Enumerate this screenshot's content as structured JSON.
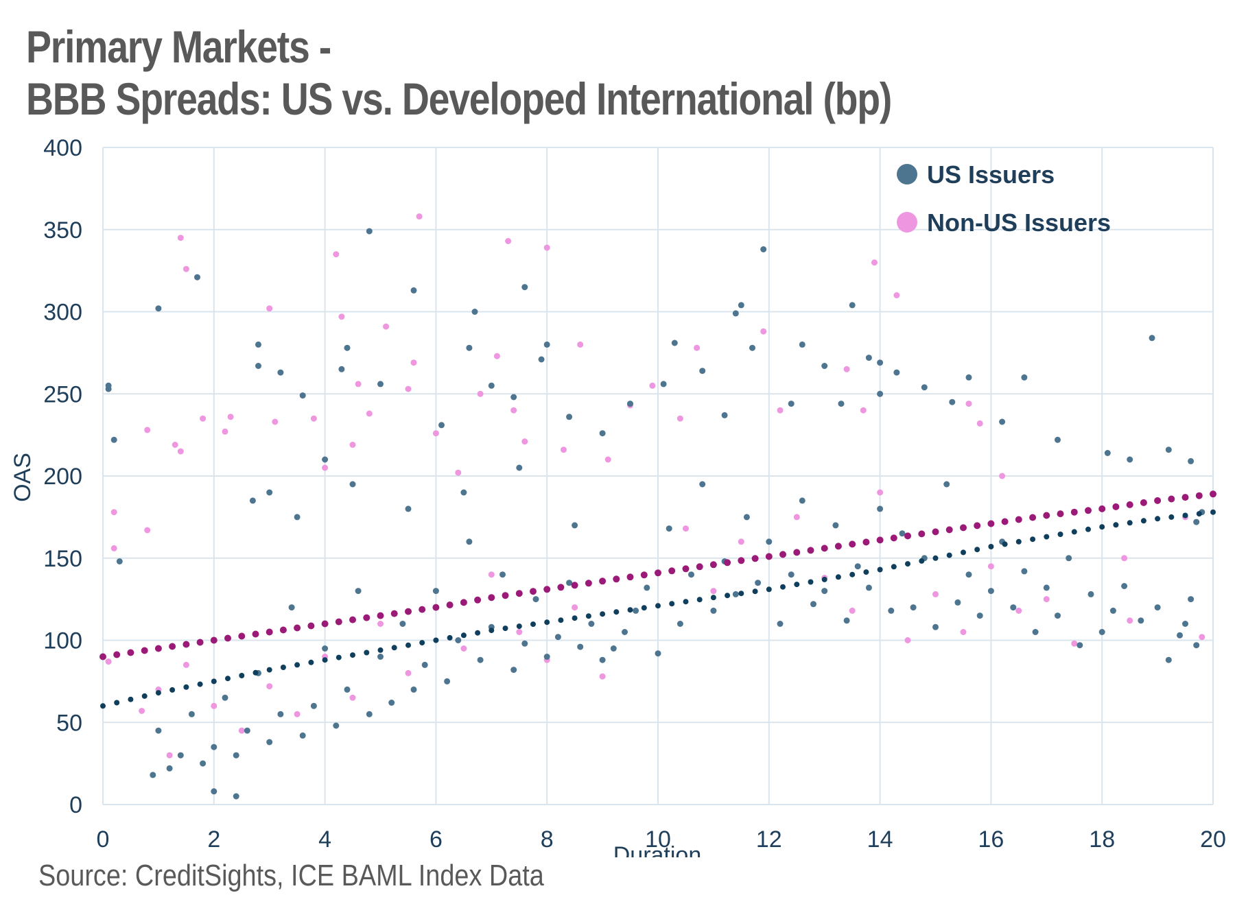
{
  "header": {
    "title_line1": "Primary Markets -",
    "title_line2": "BBB Spreads: US vs. Developed International (bp)"
  },
  "source": "Source: CreditSights, ICE BAML Index Data",
  "colors": {
    "us": "#4E7590",
    "non_us": "#EE97E0",
    "us_trend": "#0F3F5C",
    "non_us_trend": "#9B1A78",
    "grid": "#DAE4EC",
    "axis_text": "#1F3E5A"
  },
  "chart_data": {
    "type": "scatter",
    "title": "BBB Spreads: US vs. Developed International (bp)",
    "xlabel": "Duration",
    "ylabel": "OAS",
    "xlim": [
      0,
      20
    ],
    "ylim": [
      0,
      400
    ],
    "x_ticks": [
      "0",
      "2",
      "4",
      "6",
      "8",
      "10",
      "12",
      "14",
      "16",
      "18",
      "20"
    ],
    "y_ticks": [
      "0",
      "50",
      "100",
      "150",
      "200",
      "250",
      "300",
      "350",
      "400"
    ],
    "grid": true,
    "legend_position": "top-right",
    "series": [
      {
        "name": "US Issuers",
        "points": [
          [
            0.1,
            253
          ],
          [
            0.1,
            255
          ],
          [
            0.2,
            222
          ],
          [
            0.3,
            148
          ],
          [
            1.0,
            302
          ],
          [
            1.7,
            321
          ],
          [
            2.8,
            280
          ],
          [
            2.8,
            267
          ],
          [
            3.2,
            263
          ],
          [
            3.6,
            249
          ],
          [
            4.3,
            265
          ],
          [
            4.4,
            278
          ],
          [
            4.8,
            349
          ],
          [
            5.0,
            256
          ],
          [
            5.6,
            313
          ],
          [
            6.1,
            231
          ],
          [
            6.7,
            300
          ],
          [
            6.6,
            278
          ],
          [
            7.0,
            255
          ],
          [
            7.4,
            248
          ],
          [
            7.6,
            315
          ],
          [
            8.0,
            280
          ],
          [
            7.9,
            271
          ],
          [
            8.4,
            236
          ],
          [
            9.0,
            226
          ],
          [
            9.5,
            244
          ],
          [
            10.1,
            256
          ],
          [
            10.3,
            281
          ],
          [
            10.8,
            264
          ],
          [
            11.2,
            237
          ],
          [
            11.4,
            299
          ],
          [
            11.5,
            304
          ],
          [
            11.7,
            278
          ],
          [
            11.9,
            338
          ],
          [
            12.4,
            244
          ],
          [
            12.6,
            280
          ],
          [
            13.0,
            267
          ],
          [
            13.3,
            244
          ],
          [
            13.5,
            304
          ],
          [
            13.8,
            272
          ],
          [
            14.0,
            250
          ],
          [
            14.0,
            269
          ],
          [
            14.3,
            263
          ],
          [
            14.8,
            254
          ],
          [
            15.3,
            245
          ],
          [
            15.6,
            260
          ],
          [
            16.2,
            233
          ],
          [
            16.6,
            260
          ],
          [
            17.2,
            222
          ],
          [
            18.1,
            214
          ],
          [
            18.5,
            210
          ],
          [
            18.9,
            284
          ],
          [
            19.2,
            216
          ],
          [
            19.6,
            209
          ],
          [
            19.8,
            178
          ],
          [
            19.7,
            172
          ],
          [
            19.6,
            125
          ],
          [
            19.5,
            110
          ],
          [
            19.4,
            103
          ],
          [
            19.7,
            97
          ],
          [
            19.2,
            88
          ],
          [
            19.0,
            120
          ],
          [
            18.7,
            112
          ],
          [
            18.4,
            133
          ],
          [
            18.2,
            118
          ],
          [
            18.0,
            105
          ],
          [
            17.8,
            128
          ],
          [
            17.6,
            97
          ],
          [
            17.4,
            150
          ],
          [
            17.2,
            115
          ],
          [
            17.0,
            132
          ],
          [
            16.8,
            105
          ],
          [
            16.6,
            142
          ],
          [
            16.4,
            120
          ],
          [
            16.2,
            160
          ],
          [
            16.0,
            130
          ],
          [
            15.8,
            115
          ],
          [
            15.6,
            140
          ],
          [
            15.4,
            123
          ],
          [
            15.2,
            195
          ],
          [
            15.0,
            108
          ],
          [
            14.8,
            150
          ],
          [
            14.6,
            120
          ],
          [
            14.4,
            165
          ],
          [
            14.2,
            118
          ],
          [
            14.0,
            180
          ],
          [
            13.8,
            132
          ],
          [
            13.6,
            145
          ],
          [
            13.4,
            112
          ],
          [
            13.2,
            170
          ],
          [
            13.0,
            130
          ],
          [
            12.8,
            122
          ],
          [
            12.6,
            185
          ],
          [
            12.4,
            140
          ],
          [
            12.2,
            110
          ],
          [
            12.0,
            160
          ],
          [
            11.8,
            135
          ],
          [
            11.6,
            175
          ],
          [
            11.4,
            128
          ],
          [
            11.2,
            148
          ],
          [
            11.0,
            118
          ],
          [
            10.8,
            195
          ],
          [
            10.6,
            140
          ],
          [
            10.4,
            110
          ],
          [
            10.2,
            168
          ],
          [
            10.0,
            92
          ],
          [
            9.8,
            132
          ],
          [
            9.6,
            118
          ],
          [
            9.4,
            105
          ],
          [
            9.2,
            95
          ],
          [
            9.0,
            88
          ],
          [
            8.8,
            110
          ],
          [
            8.6,
            96
          ],
          [
            8.4,
            135
          ],
          [
            8.2,
            102
          ],
          [
            8.0,
            90
          ],
          [
            7.8,
            125
          ],
          [
            7.6,
            98
          ],
          [
            7.4,
            82
          ],
          [
            7.2,
            140
          ],
          [
            7.0,
            108
          ],
          [
            6.8,
            88
          ],
          [
            6.6,
            160
          ],
          [
            6.4,
            100
          ],
          [
            6.2,
            75
          ],
          [
            6.0,
            130
          ],
          [
            5.8,
            85
          ],
          [
            5.6,
            70
          ],
          [
            5.4,
            110
          ],
          [
            5.2,
            62
          ],
          [
            5.0,
            90
          ],
          [
            4.8,
            55
          ],
          [
            4.6,
            130
          ],
          [
            4.4,
            70
          ],
          [
            4.2,
            48
          ],
          [
            4.0,
            95
          ],
          [
            3.8,
            60
          ],
          [
            3.6,
            42
          ],
          [
            3.4,
            120
          ],
          [
            3.2,
            55
          ],
          [
            3.0,
            38
          ],
          [
            2.8,
            80
          ],
          [
            2.6,
            45
          ],
          [
            2.4,
            30
          ],
          [
            2.2,
            65
          ],
          [
            2.0,
            35
          ],
          [
            1.8,
            25
          ],
          [
            1.6,
            55
          ],
          [
            1.4,
            30
          ],
          [
            1.2,
            22
          ],
          [
            1.0,
            45
          ],
          [
            0.9,
            18
          ],
          [
            2.0,
            8
          ],
          [
            2.4,
            5
          ],
          [
            2.7,
            185
          ],
          [
            3.0,
            190
          ],
          [
            3.5,
            175
          ],
          [
            4.0,
            210
          ],
          [
            4.5,
            195
          ],
          [
            5.5,
            180
          ],
          [
            6.5,
            190
          ],
          [
            7.5,
            205
          ],
          [
            8.5,
            170
          ]
        ]
      },
      {
        "name": "Non-US Issuers",
        "points": [
          [
            0.2,
            178
          ],
          [
            0.2,
            156
          ],
          [
            0.8,
            228
          ],
          [
            0.8,
            167
          ],
          [
            1.3,
            219
          ],
          [
            1.4,
            215
          ],
          [
            1.4,
            345
          ],
          [
            1.5,
            326
          ],
          [
            1.8,
            235
          ],
          [
            2.2,
            227
          ],
          [
            2.3,
            236
          ],
          [
            3.0,
            302
          ],
          [
            3.1,
            233
          ],
          [
            3.8,
            235
          ],
          [
            4.0,
            205
          ],
          [
            4.2,
            335
          ],
          [
            4.3,
            297
          ],
          [
            4.5,
            219
          ],
          [
            4.6,
            256
          ],
          [
            4.8,
            238
          ],
          [
            5.1,
            291
          ],
          [
            5.5,
            253
          ],
          [
            5.6,
            269
          ],
          [
            5.7,
            358
          ],
          [
            6.0,
            226
          ],
          [
            6.4,
            202
          ],
          [
            6.8,
            250
          ],
          [
            7.1,
            273
          ],
          [
            7.3,
            343
          ],
          [
            7.4,
            240
          ],
          [
            7.6,
            221
          ],
          [
            8.0,
            339
          ],
          [
            8.3,
            216
          ],
          [
            8.6,
            280
          ],
          [
            9.1,
            210
          ],
          [
            9.5,
            243
          ],
          [
            9.9,
            255
          ],
          [
            10.4,
            235
          ],
          [
            10.7,
            278
          ],
          [
            11.5,
            160
          ],
          [
            11.9,
            288
          ],
          [
            12.2,
            240
          ],
          [
            13.4,
            265
          ],
          [
            13.7,
            240
          ],
          [
            13.9,
            330
          ],
          [
            14.3,
            310
          ],
          [
            15.6,
            244
          ],
          [
            15.8,
            232
          ],
          [
            16.2,
            200
          ],
          [
            17.0,
            125
          ],
          [
            18.4,
            150
          ],
          [
            19.8,
            102
          ],
          [
            19.5,
            175
          ],
          [
            0.1,
            87
          ],
          [
            0.7,
            57
          ],
          [
            1.0,
            70
          ],
          [
            1.2,
            30
          ],
          [
            1.5,
            85
          ],
          [
            2.0,
            60
          ],
          [
            2.5,
            45
          ],
          [
            3.0,
            72
          ],
          [
            3.5,
            55
          ],
          [
            4.0,
            90
          ],
          [
            4.5,
            65
          ],
          [
            5.0,
            110
          ],
          [
            5.5,
            80
          ],
          [
            6.0,
            120
          ],
          [
            6.5,
            95
          ],
          [
            7.0,
            140
          ],
          [
            7.5,
            105
          ],
          [
            8.0,
            88
          ],
          [
            8.5,
            120
          ],
          [
            9.0,
            78
          ],
          [
            10.5,
            168
          ],
          [
            11.0,
            130
          ],
          [
            12.5,
            175
          ],
          [
            13.0,
            138
          ],
          [
            13.5,
            118
          ],
          [
            14.0,
            190
          ],
          [
            14.5,
            100
          ],
          [
            15.0,
            128
          ],
          [
            15.5,
            105
          ],
          [
            16.0,
            145
          ],
          [
            16.5,
            118
          ],
          [
            17.5,
            98
          ],
          [
            18.5,
            112
          ]
        ]
      },
      {
        "name": "US trend",
        "points": [
          [
            0,
            60
          ],
          [
            1,
            68
          ],
          [
            2,
            75
          ],
          [
            3,
            82
          ],
          [
            4,
            88
          ],
          [
            5,
            94
          ],
          [
            6,
            100
          ],
          [
            7,
            106
          ],
          [
            8,
            111
          ],
          [
            9,
            116
          ],
          [
            10,
            121
          ],
          [
            11,
            126
          ],
          [
            12,
            131
          ],
          [
            13,
            137
          ],
          [
            14,
            143
          ],
          [
            15,
            150
          ],
          [
            16,
            157
          ],
          [
            17,
            163
          ],
          [
            18,
            169
          ],
          [
            19,
            174
          ],
          [
            20,
            178
          ]
        ]
      },
      {
        "name": "Non-US trend",
        "points": [
          [
            0,
            90
          ],
          [
            1,
            95
          ],
          [
            2,
            100
          ],
          [
            3,
            105
          ],
          [
            4,
            110
          ],
          [
            5,
            115
          ],
          [
            6,
            120
          ],
          [
            7,
            126
          ],
          [
            8,
            131
          ],
          [
            9,
            136
          ],
          [
            10,
            141
          ],
          [
            11,
            146
          ],
          [
            12,
            151
          ],
          [
            13,
            156
          ],
          [
            14,
            161
          ],
          [
            15,
            166
          ],
          [
            16,
            171
          ],
          [
            17,
            176
          ],
          [
            18,
            180
          ],
          [
            19,
            185
          ],
          [
            20,
            189
          ]
        ]
      }
    ]
  }
}
